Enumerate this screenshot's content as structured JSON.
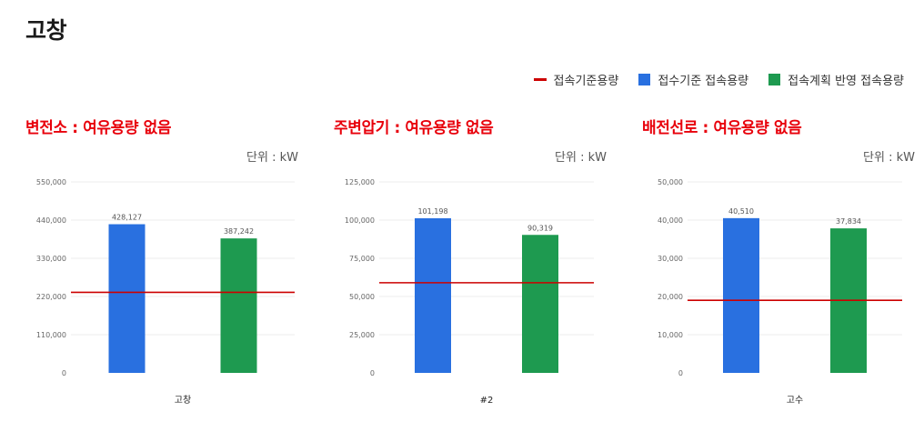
{
  "page": {
    "title": "고창"
  },
  "legend": {
    "items": [
      {
        "label": "접속기준용량",
        "kind": "line",
        "color": "#cc0000"
      },
      {
        "label": "접수기준 접속용량",
        "kind": "box",
        "color": "#2970e0"
      },
      {
        "label": "접속계획 반영 접속용량",
        "kind": "box",
        "color": "#1e9a50"
      }
    ]
  },
  "panels": [
    {
      "heading": "변전소 : 여유용량 없음",
      "unit": "단위 : kW"
    },
    {
      "heading": "주변압기 : 여유용량 없음",
      "unit": "단위 : kW"
    },
    {
      "heading": "배전선로 : 여유용량 없음",
      "unit": "단위 : kW"
    }
  ],
  "chart_data": [
    {
      "type": "bar",
      "categories": [
        "고창"
      ],
      "series": [
        {
          "name": "접수기준 접속용량",
          "values": [
            428127
          ],
          "labels": [
            "428,127"
          ],
          "color": "#2970e0"
        },
        {
          "name": "접속계획 반영 접속용량",
          "values": [
            387242
          ],
          "labels": [
            "387,242"
          ],
          "color": "#1e9a50"
        }
      ],
      "reference_line": {
        "name": "접속기준용량",
        "value": 232000,
        "color": "#cc0000"
      },
      "yticks": [
        0,
        110000,
        220000,
        330000,
        440000,
        550000
      ],
      "ytick_labels": [
        "0",
        "110,000",
        "220,000",
        "330,000",
        "440,000",
        "550,000"
      ],
      "ylim": [
        0,
        550000
      ],
      "xlabel": "",
      "ylabel": "",
      "grid": true
    },
    {
      "type": "bar",
      "categories": [
        "#2"
      ],
      "series": [
        {
          "name": "접수기준 접속용량",
          "values": [
            101198
          ],
          "labels": [
            "101,198"
          ],
          "color": "#2970e0"
        },
        {
          "name": "접속계획 반영 접속용량",
          "values": [
            90319
          ],
          "labels": [
            "90,319"
          ],
          "color": "#1e9a50"
        }
      ],
      "reference_line": {
        "name": "접속기준용량",
        "value": 59000,
        "color": "#cc0000"
      },
      "yticks": [
        0,
        25000,
        50000,
        75000,
        100000,
        125000
      ],
      "ytick_labels": [
        "0",
        "25,000",
        "50,000",
        "75,000",
        "100,000",
        "125,000"
      ],
      "ylim": [
        0,
        125000
      ],
      "xlabel": "",
      "ylabel": "",
      "grid": true
    },
    {
      "type": "bar",
      "categories": [
        "고수"
      ],
      "series": [
        {
          "name": "접수기준 접속용량",
          "values": [
            40510
          ],
          "labels": [
            "40,510"
          ],
          "color": "#2970e0"
        },
        {
          "name": "접속계획 반영 접속용량",
          "values": [
            37834
          ],
          "labels": [
            "37,834"
          ],
          "color": "#1e9a50"
        }
      ],
      "reference_line": {
        "name": "접속기준용량",
        "value": 19000,
        "color": "#cc0000"
      },
      "yticks": [
        0,
        10000,
        20000,
        30000,
        40000,
        50000
      ],
      "ytick_labels": [
        "0",
        "10,000",
        "20,000",
        "30,000",
        "40,000",
        "50,000"
      ],
      "ylim": [
        0,
        50000
      ],
      "xlabel": "",
      "ylabel": "",
      "grid": true
    }
  ]
}
